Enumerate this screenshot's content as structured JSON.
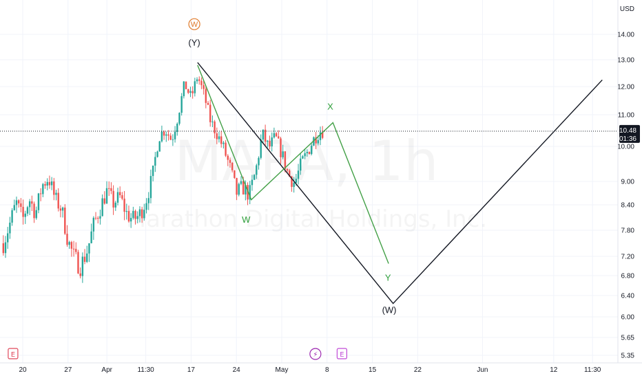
{
  "chart_data": {
    "type": "candlestick",
    "currency_label": "USD",
    "watermark": {
      "symbol": "MARA, 1h",
      "name": "Marathon Digital Holdings, Inc."
    },
    "y_ticks": [
      {
        "label": "14.00",
        "value": 14.0
      },
      {
        "label": "13.00",
        "value": 13.0
      },
      {
        "label": "12.00",
        "value": 12.0
      },
      {
        "label": "11.00",
        "value": 11.0
      },
      {
        "label": "10.00",
        "value": 10.0
      },
      {
        "label": "9.00",
        "value": 9.0
      },
      {
        "label": "8.40",
        "value": 8.4
      },
      {
        "label": "7.80",
        "value": 7.8
      },
      {
        "label": "7.20",
        "value": 7.2
      },
      {
        "label": "6.80",
        "value": 6.8
      },
      {
        "label": "6.40",
        "value": 6.4
      },
      {
        "label": "6.00",
        "value": 6.0
      },
      {
        "label": "5.65",
        "value": 5.65
      },
      {
        "label": "5.35",
        "value": 5.35
      }
    ],
    "x_ticks": [
      {
        "label": "20",
        "day": 0
      },
      {
        "label": "27",
        "day": 7
      },
      {
        "label": "Apr",
        "day": 13
      },
      {
        "label": "11:30",
        "day": 19
      },
      {
        "label": "17",
        "day": 26
      },
      {
        "label": "24",
        "day": 33
      },
      {
        "label": "May",
        "day": 40
      },
      {
        "label": "8",
        "day": 47
      },
      {
        "label": "15",
        "day": 54
      },
      {
        "label": "22",
        "day": 61
      },
      {
        "label": "Jun",
        "day": 71
      },
      {
        "label": "12",
        "day": 82
      },
      {
        "label": "11:30",
        "day": 88
      }
    ],
    "last_price": {
      "price": "10.48",
      "countdown": "01:36",
      "value": 10.48
    },
    "wave_labels": [
      {
        "text": "(Y)",
        "day": 26.5,
        "price": 13.55,
        "color": "#131722"
      },
      {
        "text": "W",
        "day": 34.5,
        "price": 7.98,
        "color": "#2e9e3a"
      },
      {
        "text": "X",
        "day": 47.5,
        "price": 11.18,
        "color": "#2e9e3a"
      },
      {
        "text": "Y",
        "day": 56.4,
        "price": 6.7,
        "color": "#2e9e3a"
      },
      {
        "text": "(W)",
        "day": 56.6,
        "price": 6.07,
        "color": "#131722"
      }
    ],
    "circle_marker": {
      "text": "W",
      "day": 26.5,
      "price": 14.4,
      "color": "#e07a2a"
    },
    "black_path": [
      {
        "day": 27,
        "price": 12.9
      },
      {
        "day": 57.2,
        "price": 6.25
      },
      {
        "day": 89.5,
        "price": 12.25
      }
    ],
    "green_path": [
      {
        "day": 27,
        "price": 12.8
      },
      {
        "day": 35.3,
        "price": 8.53
      },
      {
        "day": 47.9,
        "price": 10.75
      },
      {
        "day": 56.5,
        "price": 7.05
      }
    ],
    "events": [
      {
        "kind": "earnings",
        "glyph": "E",
        "day": -1.5,
        "color": "#e0475b"
      },
      {
        "kind": "dividend",
        "glyph": "⚡",
        "day": 45.2,
        "color": "#9c27b0"
      },
      {
        "kind": "earnings",
        "glyph": "E",
        "day": 49.3,
        "color": "#c04ad6"
      }
    ],
    "ohlc_samples": [
      [
        -3,
        7.5
      ],
      [
        -2,
        7.95
      ],
      [
        -1,
        8.45
      ],
      [
        0,
        8.05
      ],
      [
        1,
        8.55
      ],
      [
        2,
        8.2
      ],
      [
        3,
        8.9
      ],
      [
        4,
        9.1
      ],
      [
        5,
        8.55
      ],
      [
        6,
        8.3
      ],
      [
        7,
        7.55
      ],
      [
        8,
        7.15
      ],
      [
        9,
        7.0
      ],
      [
        10,
        7.35
      ],
      [
        11,
        7.95
      ],
      [
        12,
        8.35
      ],
      [
        13,
        8.75
      ],
      [
        14,
        8.45
      ],
      [
        15,
        8.6
      ],
      [
        16,
        8.2
      ],
      [
        17,
        8.05
      ],
      [
        18,
        8.15
      ],
      [
        19,
        8.5
      ],
      [
        20,
        9.1
      ],
      [
        21,
        10.3
      ],
      [
        22,
        10.55
      ],
      [
        23,
        10.2
      ],
      [
        24,
        11.0
      ],
      [
        25,
        12.1
      ],
      [
        26,
        11.6
      ],
      [
        27,
        12.4
      ],
      [
        28,
        11.7
      ],
      [
        29,
        10.8
      ],
      [
        30,
        10.4
      ],
      [
        31,
        9.95
      ],
      [
        32,
        9.4
      ],
      [
        33,
        8.7
      ],
      [
        34,
        8.85
      ],
      [
        35,
        8.65
      ],
      [
        36,
        9.3
      ],
      [
        37,
        10.4
      ],
      [
        38,
        9.95
      ],
      [
        39,
        10.3
      ],
      [
        40,
        9.8
      ],
      [
        41,
        9.2
      ],
      [
        42,
        8.95
      ],
      [
        43,
        9.5
      ],
      [
        44,
        9.85
      ],
      [
        45,
        10.25
      ],
      [
        46,
        10.5
      ],
      [
        46.5,
        10.48
      ]
    ]
  }
}
